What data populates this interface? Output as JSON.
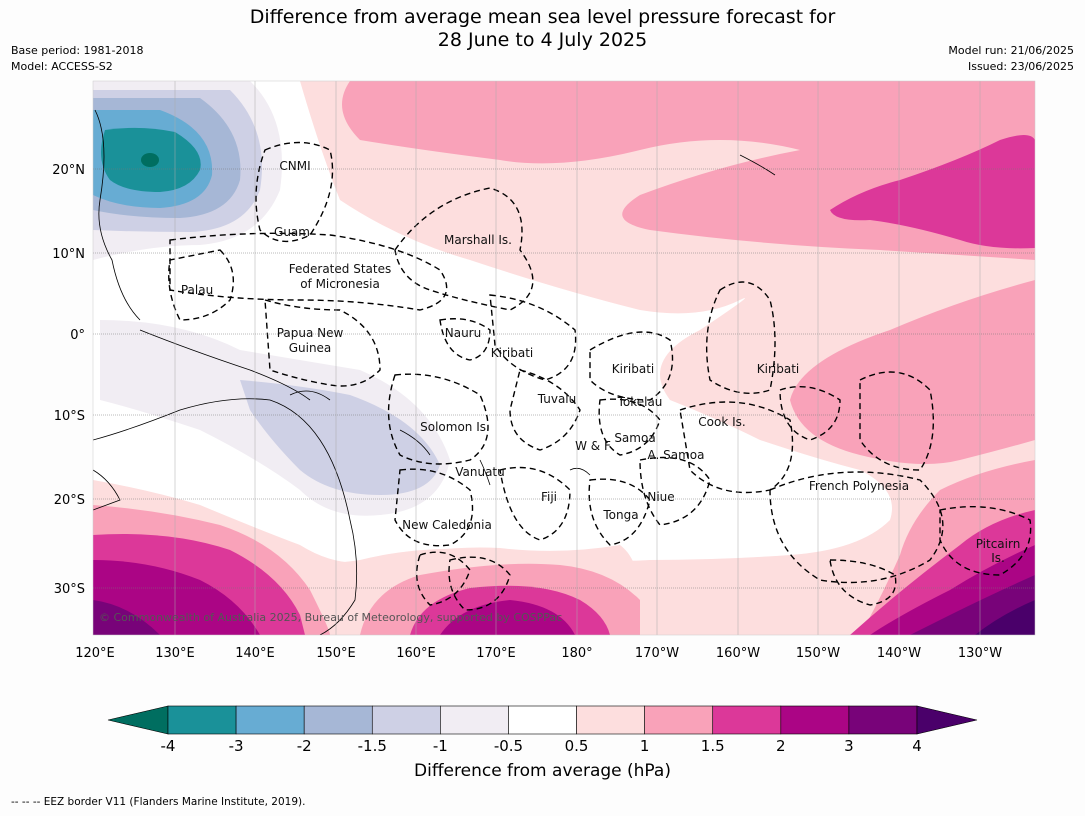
{
  "title_line1": "Difference from average mean sea level pressure forecast for",
  "title_line2": "28 June to 4 July 2025",
  "meta_left": [
    "Base period: 1981-2018",
    "Model: ACCESS-S2"
  ],
  "meta_right": [
    "Model run: 21/06/2025",
    "Issued: 23/06/2025"
  ],
  "lon_labels": [
    "120°E",
    "130°E",
    "140°E",
    "150°E",
    "160°E",
    "170°E",
    "180°",
    "170°W",
    "160°W",
    "150°W",
    "140°W",
    "130°W"
  ],
  "lat_labels": [
    "20°N",
    "10°N",
    "0°",
    "10°S",
    "20°S",
    "30°S"
  ],
  "place_labels": [
    "CNMI",
    "Guam",
    "Marshall Is.",
    "Federated States",
    "of Micronesia",
    "Palau",
    "Papua New",
    "Guinea",
    "Nauru",
    "Kiribati",
    "Kiribati",
    "Kiribati",
    "Tuvalu",
    "Tokelau",
    "Solomon Is.",
    "W & F",
    "Samoa",
    "A. Samoa",
    "Cook Is.",
    "Vanuatu",
    "Fiji",
    "Niue",
    "Tonga",
    "French Polynesia",
    "New Caledonia",
    "Pitcairn",
    "Is."
  ],
  "copyright": "© Commonwealth of Australia 2025, Bureau of Meteorology, supported by COSPPac",
  "colorbar": {
    "ticks": [
      "-4",
      "-3",
      "-2",
      "-1.5",
      "-1",
      "-0.5",
      "0.5",
      "1",
      "1.5",
      "2",
      "3",
      "4"
    ],
    "colors": [
      "#006e60",
      "#1a9199",
      "#67acd3",
      "#a6b7d6",
      "#ced0e5",
      "#f1edf3",
      "#ffffff",
      "#fddede",
      "#f9a2b9",
      "#dc3899",
      "#ab0585",
      "#780379",
      "#4a006a"
    ],
    "title": "Difference from average (hPa)"
  },
  "footer": "--  --  -- EEZ border V11 (Flanders Marine Institute, 2019)."
}
